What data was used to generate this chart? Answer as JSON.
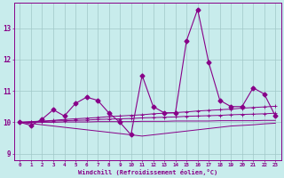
{
  "xlabel": "Windchill (Refroidissement éolien,°C)",
  "background_color": "#c8ecec",
  "grid_color": "#a0c8c8",
  "line_color": "#880088",
  "x_data": [
    0,
    1,
    2,
    3,
    4,
    5,
    6,
    7,
    8,
    9,
    10,
    11,
    12,
    13,
    14,
    15,
    16,
    17,
    18,
    19,
    20,
    21,
    22,
    23
  ],
  "main_line": [
    10.0,
    9.9,
    10.1,
    10.4,
    10.2,
    10.6,
    10.8,
    10.7,
    10.3,
    10.0,
    9.6,
    11.5,
    10.5,
    10.3,
    10.3,
    12.6,
    13.6,
    11.9,
    10.7,
    10.5,
    10.5,
    11.1,
    10.9,
    10.2
  ],
  "trend_up1": [
    10.0,
    10.02,
    10.04,
    10.06,
    10.09,
    10.11,
    10.13,
    10.15,
    10.18,
    10.2,
    10.22,
    10.24,
    10.27,
    10.29,
    10.31,
    10.33,
    10.36,
    10.38,
    10.4,
    10.42,
    10.45,
    10.47,
    10.49,
    10.51
  ],
  "trend_up2": [
    10.0,
    10.01,
    10.02,
    10.04,
    10.05,
    10.06,
    10.07,
    10.09,
    10.1,
    10.11,
    10.12,
    10.14,
    10.15,
    10.16,
    10.17,
    10.19,
    10.2,
    10.21,
    10.22,
    10.24,
    10.25,
    10.26,
    10.27,
    10.29
  ],
  "trend_flat": [
    10.0,
    10.0,
    10.0,
    10.0,
    10.01,
    10.01,
    10.01,
    10.02,
    10.02,
    10.02,
    10.02,
    10.03,
    10.03,
    10.03,
    10.04,
    10.04,
    10.04,
    10.04,
    10.05,
    10.05,
    10.05,
    10.05,
    10.06,
    10.06
  ],
  "trend_down": [
    10.0,
    9.96,
    9.92,
    9.88,
    9.84,
    9.8,
    9.76,
    9.72,
    9.68,
    9.64,
    9.6,
    9.56,
    9.6,
    9.64,
    9.68,
    9.72,
    9.76,
    9.8,
    9.84,
    9.88,
    9.9,
    9.92,
    9.95,
    9.97
  ],
  "ylim": [
    8.8,
    13.8
  ],
  "xlim": [
    -0.5,
    23.5
  ]
}
